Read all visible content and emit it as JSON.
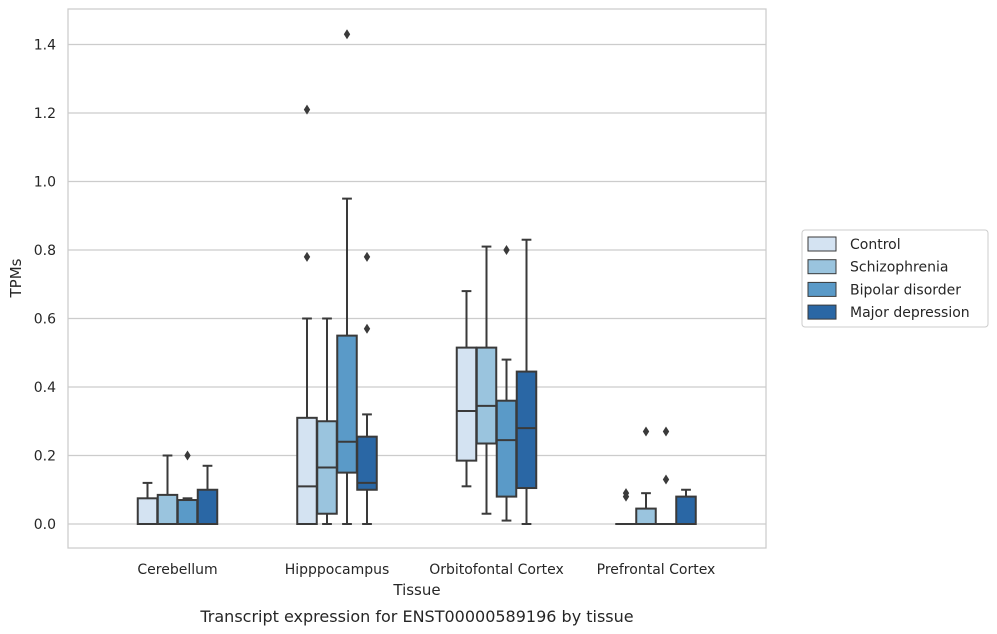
{
  "chart_data": {
    "type": "boxplot",
    "title": "Transcript expression for ENST00000589196 by tissue",
    "xlabel": "Tissue",
    "ylabel": "TPMs",
    "ylim": [
      -0.07,
      1.5
    ],
    "yticks": [
      "0.0",
      "0.2",
      "0.4",
      "0.6",
      "0.8",
      "1.0",
      "1.2",
      "1.4"
    ],
    "ytick_values": [
      0,
      0.2,
      0.4,
      0.6,
      0.8,
      1.0,
      1.2,
      1.4
    ],
    "grid": "horizontal",
    "legend_position": "right",
    "categories": [
      "Cerebellum",
      "Hipppocampus",
      "Orbitofontal Cortex",
      "Prefrontal Cortex"
    ],
    "series": [
      {
        "name": "Control",
        "color": "#d4e3f2",
        "boxes": [
          {
            "whislo": 0.0,
            "q1": 0.0,
            "med": 0.0,
            "q3": 0.075,
            "whishi": 0.12,
            "fliers": []
          },
          {
            "whislo": 0.0,
            "q1": 0.0,
            "med": 0.11,
            "q3": 0.31,
            "whishi": 0.6,
            "fliers": [
              0.78,
              1.21
            ]
          },
          {
            "whislo": 0.11,
            "q1": 0.185,
            "med": 0.33,
            "q3": 0.515,
            "whishi": 0.68,
            "fliers": []
          },
          {
            "whislo": 0.0,
            "q1": 0.0,
            "med": 0.0,
            "q3": 0.0,
            "whishi": 0.0,
            "fliers": [
              0.08,
              0.09
            ]
          }
        ]
      },
      {
        "name": "Schizophrenia",
        "color": "#9ac4de",
        "boxes": [
          {
            "whislo": 0.0,
            "q1": 0.0,
            "med": 0.0,
            "q3": 0.085,
            "whishi": 0.2,
            "fliers": []
          },
          {
            "whislo": 0.0,
            "q1": 0.03,
            "med": 0.165,
            "q3": 0.3,
            "whishi": 0.6,
            "fliers": []
          },
          {
            "whislo": 0.03,
            "q1": 0.235,
            "med": 0.345,
            "q3": 0.515,
            "whishi": 0.81,
            "fliers": []
          },
          {
            "whislo": 0.0,
            "q1": 0.0,
            "med": 0.0,
            "q3": 0.045,
            "whishi": 0.09,
            "fliers": [
              0.27
            ]
          }
        ]
      },
      {
        "name": "Bipolar disorder",
        "color": "#5a9ac8",
        "boxes": [
          {
            "whislo": 0.0,
            "q1": 0.0,
            "med": 0.0,
            "q3": 0.07,
            "whishi": 0.075,
            "fliers": [
              0.2
            ]
          },
          {
            "whislo": 0.0,
            "q1": 0.15,
            "med": 0.24,
            "q3": 0.55,
            "whishi": 0.95,
            "fliers": [
              1.43
            ]
          },
          {
            "whislo": 0.01,
            "q1": 0.08,
            "med": 0.245,
            "q3": 0.36,
            "whishi": 0.48,
            "fliers": [
              0.8
            ]
          },
          {
            "whislo": 0.0,
            "q1": 0.0,
            "med": 0.0,
            "q3": 0.0,
            "whishi": 0.0,
            "fliers": [
              0.13,
              0.27
            ]
          }
        ]
      },
      {
        "name": "Major depression",
        "color": "#2a67a5",
        "boxes": [
          {
            "whislo": 0.0,
            "q1": 0.0,
            "med": 0.0,
            "q3": 0.1,
            "whishi": 0.17,
            "fliers": []
          },
          {
            "whislo": 0.0,
            "q1": 0.1,
            "med": 0.12,
            "q3": 0.255,
            "whishi": 0.32,
            "fliers": [
              0.57,
              0.78
            ]
          },
          {
            "whislo": 0.0,
            "q1": 0.105,
            "med": 0.28,
            "q3": 0.445,
            "whishi": 0.83,
            "fliers": []
          },
          {
            "whislo": 0.0,
            "q1": 0.0,
            "med": 0.0,
            "q3": 0.08,
            "whishi": 0.1,
            "fliers": []
          }
        ]
      }
    ]
  }
}
